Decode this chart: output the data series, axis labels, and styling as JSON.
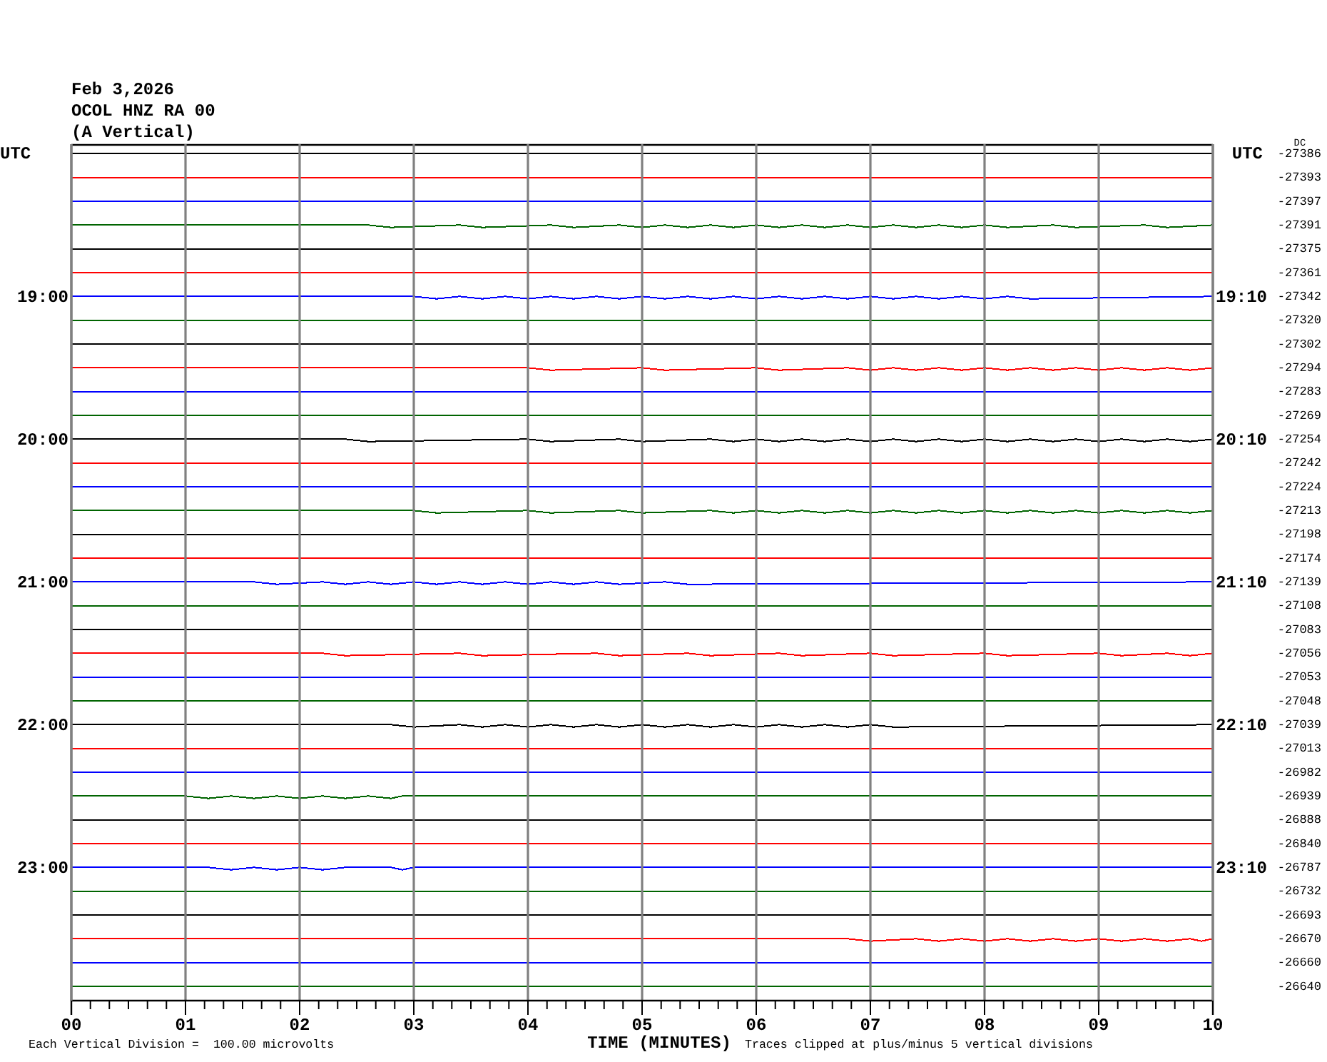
{
  "chart_data": {
    "type": "line",
    "title": "Feb 3,2026",
    "subtitle": "OCOL HNZ RA 00",
    "annotations": [
      "(A Vertical)",
      "Each Vertical Division =  100.00 microvolts",
      "Traces clipped at plus/minus 5 vertical divisions"
    ],
    "xlabel": "TIME (MINUTES)",
    "ylabel": "UTC",
    "y2label": "UTC",
    "legend_title": "DC",
    "xlim": [
      0,
      10
    ],
    "xticks": [
      {
        "value": 0,
        "label": "00"
      },
      {
        "value": 0.167,
        "label": null
      },
      {
        "value": 0.333,
        "label": null
      },
      {
        "value": 0.5,
        "label": null
      },
      {
        "value": 0.667,
        "label": null
      },
      {
        "value": 0.833,
        "label": null
      },
      {
        "value": 1,
        "label": "01"
      },
      {
        "value": 1.167,
        "label": null
      },
      {
        "value": 1.333,
        "label": null
      },
      {
        "value": 1.5,
        "label": null
      },
      {
        "value": 1.667,
        "label": null
      },
      {
        "value": 1.833,
        "label": null
      },
      {
        "value": 2,
        "label": "02"
      },
      {
        "value": 2.167,
        "label": null
      },
      {
        "value": 2.333,
        "label": null
      },
      {
        "value": 2.5,
        "label": null
      },
      {
        "value": 2.667,
        "label": null
      },
      {
        "value": 2.833,
        "label": null
      },
      {
        "value": 3,
        "label": "03"
      },
      {
        "value": 3.167,
        "label": null
      },
      {
        "value": 3.333,
        "label": null
      },
      {
        "value": 3.5,
        "label": null
      },
      {
        "value": 3.667,
        "label": null
      },
      {
        "value": 3.833,
        "label": null
      },
      {
        "value": 4,
        "label": "04"
      },
      {
        "value": 4.167,
        "label": null
      },
      {
        "value": 4.333,
        "label": null
      },
      {
        "value": 4.5,
        "label": null
      },
      {
        "value": 4.667,
        "label": null
      },
      {
        "value": 4.833,
        "label": null
      },
      {
        "value": 5,
        "label": "05"
      },
      {
        "value": 5.167,
        "label": null
      },
      {
        "value": 5.333,
        "label": null
      },
      {
        "value": 5.5,
        "label": null
      },
      {
        "value": 5.667,
        "label": null
      },
      {
        "value": 5.833,
        "label": null
      },
      {
        "value": 6,
        "label": "06"
      },
      {
        "value": 6.167,
        "label": null
      },
      {
        "value": 6.333,
        "label": null
      },
      {
        "value": 6.5,
        "label": null
      },
      {
        "value": 6.667,
        "label": null
      },
      {
        "value": 6.833,
        "label": null
      },
      {
        "value": 7,
        "label": "07"
      },
      {
        "value": 7.167,
        "label": null
      },
      {
        "value": 7.333,
        "label": null
      },
      {
        "value": 7.5,
        "label": null
      },
      {
        "value": 7.667,
        "label": null
      },
      {
        "value": 7.833,
        "label": null
      },
      {
        "value": 8,
        "label": "08"
      },
      {
        "value": 8.167,
        "label": null
      },
      {
        "value": 8.333,
        "label": null
      },
      {
        "value": 8.5,
        "label": null
      },
      {
        "value": 8.667,
        "label": null
      },
      {
        "value": 8.833,
        "label": null
      },
      {
        "value": 9,
        "label": "09"
      },
      {
        "value": 9.167,
        "label": null
      },
      {
        "value": 9.333,
        "label": null
      },
      {
        "value": 9.5,
        "label": null
      },
      {
        "value": 9.667,
        "label": null
      },
      {
        "value": 9.833,
        "label": null
      },
      10
    ],
    "ylim": [
      1436,
      1076
    ],
    "yticks": [
      {
        "value": 1140,
        "label": "19:00"
      },
      {
        "value": 1200,
        "label": "20:00"
      },
      {
        "value": 1260,
        "label": "21:00"
      },
      {
        "value": 1320,
        "label": "22:00"
      },
      {
        "value": 1380,
        "label": "23:00"
      }
    ],
    "y2lim": [
      1446,
      1086
    ],
    "y2ticks": [
      {
        "value": 1150,
        "label": "19:10"
      },
      {
        "value": 1210,
        "label": "20:10"
      },
      {
        "value": 1270,
        "label": "21:10"
      },
      {
        "value": 1330,
        "label": "22:10"
      },
      {
        "value": 1390,
        "label": "23:10"
      }
    ],
    "grid": "x",
    "series": [
      {
        "name": "-27386",
        "color": "#000000",
        "x": [
          0,
          10
        ],
        "values": [
          1080,
          1080
        ]
      },
      {
        "name": "-27393",
        "color": "#ff0000",
        "x": [
          0,
          10
        ],
        "values": [
          1090,
          1090
        ]
      },
      {
        "name": "-27397",
        "color": "#0000ff",
        "x": [
          0,
          10
        ],
        "values": [
          1100,
          1100
        ]
      },
      {
        "name": "-27391",
        "color": "#006400",
        "x": [
          0,
          2.6,
          2.8,
          3.4,
          3.6,
          4.2,
          4.4,
          4.8,
          5.0,
          5.2,
          5.4,
          5.6,
          5.8,
          6.0,
          6.2,
          6.4,
          6.6,
          6.8,
          7.0,
          7.2,
          7.4,
          7.6,
          7.8,
          8.0,
          8.2,
          8.6,
          8.8,
          9.4,
          9.6,
          10
        ],
        "values": [
          1110,
          1110,
          1111,
          1110,
          1111,
          1110,
          1111,
          1110,
          1111,
          1110,
          1111,
          1110,
          1111,
          1110,
          1111,
          1110,
          1111,
          1110,
          1111,
          1110,
          1111,
          1110,
          1111,
          1110,
          1111,
          1110,
          1111,
          1110,
          1111,
          1110
        ]
      },
      {
        "name": "-27375",
        "color": "#000000",
        "x": [
          0,
          10
        ],
        "values": [
          1120,
          1120
        ]
      },
      {
        "name": "-27361",
        "color": "#ff0000",
        "x": [
          0,
          10
        ],
        "values": [
          1130,
          1130
        ]
      },
      {
        "name": "-27342",
        "color": "#0000ff",
        "x": [
          0,
          3.0,
          3.2,
          3.4,
          3.6,
          3.8,
          4.0,
          4.2,
          4.4,
          4.6,
          4.8,
          5.0,
          5.2,
          5.4,
          5.6,
          5.8,
          6.0,
          6.2,
          6.4,
          6.6,
          6.8,
          7.0,
          7.2,
          7.4,
          7.6,
          7.8,
          8.0,
          8.2,
          8.4,
          10
        ],
        "values": [
          1140,
          1140,
          1141,
          1140,
          1141,
          1140,
          1141,
          1140,
          1141,
          1140,
          1141,
          1140,
          1141,
          1140,
          1141,
          1140,
          1141,
          1140,
          1141,
          1140,
          1141,
          1140,
          1141,
          1140,
          1141,
          1140,
          1141,
          1140,
          1141,
          1140
        ]
      },
      {
        "name": "-27320",
        "color": "#006400",
        "x": [
          0,
          10
        ],
        "values": [
          1150,
          1150
        ]
      },
      {
        "name": "-27302",
        "color": "#000000",
        "x": [
          0,
          10
        ],
        "values": [
          1160,
          1160
        ]
      },
      {
        "name": "-27294",
        "color": "#ff0000",
        "x": [
          0,
          4.0,
          4.2,
          5.0,
          5.2,
          6.0,
          6.2,
          6.8,
          7.0,
          7.2,
          7.4,
          7.6,
          7.8,
          8.0,
          8.2,
          8.4,
          8.6,
          8.8,
          9.0,
          9.2,
          9.4,
          9.6,
          9.8,
          10
        ],
        "values": [
          1170,
          1170,
          1171,
          1170,
          1171,
          1170,
          1171,
          1170,
          1171,
          1170,
          1171,
          1170,
          1171,
          1170,
          1171,
          1170,
          1171,
          1170,
          1171,
          1170,
          1171,
          1170,
          1171,
          1170
        ]
      },
      {
        "name": "-27283",
        "color": "#0000ff",
        "x": [
          0,
          10
        ],
        "values": [
          1180,
          1180
        ]
      },
      {
        "name": "-27269",
        "color": "#006400",
        "x": [
          0,
          10
        ],
        "values": [
          1190,
          1190
        ]
      },
      {
        "name": "-27254",
        "color": "#000000",
        "x": [
          0,
          2.4,
          2.6,
          4.0,
          4.2,
          4.8,
          5.0,
          5.6,
          5.8,
          6.0,
          6.2,
          6.4,
          6.6,
          6.8,
          7.0,
          7.2,
          7.4,
          7.6,
          7.8,
          8.0,
          8.2,
          8.4,
          8.6,
          8.8,
          9.0,
          9.2,
          9.4,
          9.6,
          9.8,
          10
        ],
        "values": [
          1200,
          1200,
          1201,
          1200,
          1201,
          1200,
          1201,
          1200,
          1201,
          1200,
          1201,
          1200,
          1201,
          1200,
          1201,
          1200,
          1201,
          1200,
          1201,
          1200,
          1201,
          1200,
          1201,
          1200,
          1201,
          1200,
          1201,
          1200,
          1201,
          1200
        ]
      },
      {
        "name": "-27242",
        "color": "#ff0000",
        "x": [
          0,
          10
        ],
        "values": [
          1210,
          1210
        ]
      },
      {
        "name": "-27224",
        "color": "#0000ff",
        "x": [
          0,
          10
        ],
        "values": [
          1220,
          1220
        ]
      },
      {
        "name": "-27213",
        "color": "#006400",
        "x": [
          0,
          3.0,
          3.2,
          4.0,
          4.2,
          4.8,
          5.0,
          5.6,
          5.8,
          6.0,
          6.2,
          6.4,
          6.6,
          6.8,
          7.0,
          7.2,
          7.4,
          7.6,
          7.8,
          8.0,
          8.2,
          8.4,
          8.6,
          8.8,
          9.0,
          9.2,
          9.4,
          9.6,
          9.8,
          10
        ],
        "values": [
          1230,
          1230,
          1231,
          1230,
          1231,
          1230,
          1231,
          1230,
          1231,
          1230,
          1231,
          1230,
          1231,
          1230,
          1231,
          1230,
          1231,
          1230,
          1231,
          1230,
          1231,
          1230,
          1231,
          1230,
          1231,
          1230,
          1231,
          1230,
          1231,
          1230
        ]
      },
      {
        "name": "-27198",
        "color": "#000000",
        "x": [
          0,
          10
        ],
        "values": [
          1240,
          1240
        ]
      },
      {
        "name": "-27174",
        "color": "#ff0000",
        "x": [
          0,
          10
        ],
        "values": [
          1250,
          1250
        ]
      },
      {
        "name": "-27139",
        "color": "#0000ff",
        "x": [
          0,
          1.6,
          1.8,
          2.2,
          2.4,
          2.6,
          2.8,
          3.0,
          3.2,
          3.4,
          3.6,
          3.8,
          4.0,
          4.2,
          4.4,
          4.6,
          4.8,
          5.2,
          5.4,
          10
        ],
        "values": [
          1260,
          1260,
          1261,
          1260,
          1261,
          1260,
          1261,
          1260,
          1261,
          1260,
          1261,
          1260,
          1261,
          1260,
          1261,
          1260,
          1261,
          1260,
          1261,
          1260
        ]
      },
      {
        "name": "-27108",
        "color": "#006400",
        "x": [
          0,
          10
        ],
        "values": [
          1270,
          1270
        ]
      },
      {
        "name": "-27083",
        "color": "#000000",
        "x": [
          0,
          10
        ],
        "values": [
          1280,
          1280
        ]
      },
      {
        "name": "-27056",
        "color": "#ff0000",
        "x": [
          0,
          2.2,
          2.4,
          3.4,
          3.6,
          4.6,
          4.8,
          5.4,
          5.6,
          6.2,
          6.4,
          7.0,
          7.2,
          8.0,
          8.2,
          9.0,
          9.2,
          9.6,
          9.8,
          10
        ],
        "values": [
          1290,
          1290,
          1291,
          1290,
          1291,
          1290,
          1291,
          1290,
          1291,
          1290,
          1291,
          1290,
          1291,
          1290,
          1291,
          1290,
          1291,
          1290,
          1291,
          1290
        ]
      },
      {
        "name": "-27053",
        "color": "#0000ff",
        "x": [
          0,
          10
        ],
        "values": [
          1300,
          1300
        ]
      },
      {
        "name": "-27048",
        "color": "#006400",
        "x": [
          0,
          10
        ],
        "values": [
          1310,
          1310
        ]
      },
      {
        "name": "-27039",
        "color": "#000000",
        "x": [
          0,
          2.8,
          3.0,
          3.4,
          3.6,
          3.8,
          4.0,
          4.2,
          4.4,
          4.6,
          4.8,
          5.0,
          5.2,
          5.4,
          5.6,
          5.8,
          6.0,
          6.2,
          6.4,
          6.6,
          6.8,
          7.0,
          7.2,
          10
        ],
        "values": [
          1320,
          1320,
          1321,
          1320,
          1321,
          1320,
          1321,
          1320,
          1321,
          1320,
          1321,
          1320,
          1321,
          1320,
          1321,
          1320,
          1321,
          1320,
          1321,
          1320,
          1321,
          1320,
          1321,
          1320
        ]
      },
      {
        "name": "-27013",
        "color": "#ff0000",
        "x": [
          0,
          10
        ],
        "values": [
          1330,
          1330
        ]
      },
      {
        "name": "-26982",
        "color": "#0000ff",
        "x": [
          0,
          10
        ],
        "values": [
          1340,
          1340
        ]
      },
      {
        "name": "-26939",
        "color": "#006400",
        "x": [
          0,
          1.0,
          1.2,
          1.4,
          1.6,
          1.8,
          2.0,
          2.2,
          2.4,
          2.6,
          2.8,
          2.9,
          10
        ],
        "values": [
          1350,
          1350,
          1351,
          1350,
          1351,
          1350,
          1351,
          1350,
          1351,
          1350,
          1351,
          1350,
          1350
        ]
      },
      {
        "name": "-26888",
        "color": "#000000",
        "x": [
          0,
          10
        ],
        "values": [
          1360,
          1360
        ]
      },
      {
        "name": "-26840",
        "color": "#ff0000",
        "x": [
          0,
          10
        ],
        "values": [
          1370,
          1370
        ]
      },
      {
        "name": "-26787",
        "color": "#0000ff",
        "x": [
          0,
          1.2,
          1.4,
          1.6,
          1.8,
          2.0,
          2.2,
          2.4,
          2.8,
          2.9,
          3.0,
          10
        ],
        "values": [
          1380,
          1380,
          1381,
          1380,
          1381,
          1380,
          1381,
          1380,
          1380,
          1381,
          1380,
          1380
        ]
      },
      {
        "name": "-26732",
        "color": "#006400",
        "x": [
          0,
          10
        ],
        "values": [
          1390,
          1390
        ]
      },
      {
        "name": "-26693",
        "color": "#000000",
        "x": [
          0,
          10
        ],
        "values": [
          1400,
          1400
        ]
      },
      {
        "name": "-26670",
        "color": "#ff0000",
        "x": [
          0,
          6.8,
          7.0,
          7.4,
          7.6,
          7.8,
          8.0,
          8.2,
          8.4,
          8.6,
          8.8,
          9.0,
          9.2,
          9.4,
          9.6,
          9.8,
          9.9,
          10
        ],
        "values": [
          1410,
          1410,
          1411,
          1410,
          1411,
          1410,
          1411,
          1410,
          1411,
          1410,
          1411,
          1410,
          1411,
          1410,
          1411,
          1410,
          1411,
          1410
        ]
      },
      {
        "name": "-26660",
        "color": "#0000ff",
        "x": [
          0,
          10
        ],
        "values": [
          1420,
          1420
        ]
      },
      {
        "name": "-26640",
        "color": "#006400",
        "x": [
          0,
          10
        ],
        "values": [
          1430,
          1430
        ]
      }
    ]
  }
}
